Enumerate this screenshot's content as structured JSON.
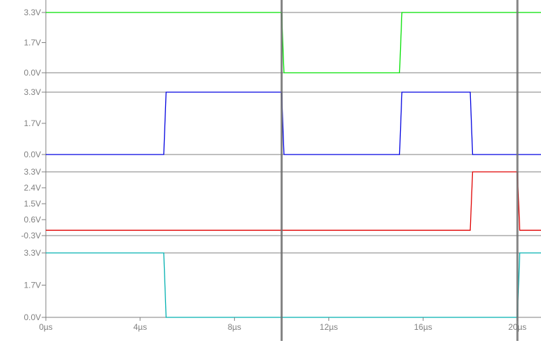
{
  "chart_data": {
    "type": "line",
    "x_unit": "µs",
    "xlim": [
      0,
      21
    ],
    "x_ticks": [
      0,
      4,
      8,
      12,
      16,
      20
    ],
    "x_tick_labels": [
      "0µs",
      "4µs",
      "8µs",
      "12µs",
      "16µs",
      "20µs"
    ],
    "cursors": [
      10,
      20
    ],
    "cursor_color": "#6e6e6e",
    "axis_color": "#7f7f7f",
    "series": [
      {
        "color": "#00e000",
        "ylim": [
          0.0,
          3.3
        ],
        "y_ticks": [
          "3.3V",
          "1.7V",
          "0.0V"
        ],
        "points": [
          [
            0,
            3.3
          ],
          [
            10.0,
            3.3
          ],
          [
            10.1,
            0.0
          ],
          [
            15.0,
            0.0
          ],
          [
            15.1,
            3.3
          ],
          [
            21,
            3.3
          ]
        ]
      },
      {
        "color": "#0000e0",
        "ylim": [
          0.0,
          3.3
        ],
        "y_ticks": [
          "3.3V",
          "1.7V",
          "0.0V"
        ],
        "points": [
          [
            0,
            0.0
          ],
          [
            5.0,
            0.0
          ],
          [
            5.1,
            3.3
          ],
          [
            10.0,
            3.3
          ],
          [
            10.1,
            0.0
          ],
          [
            15.0,
            0.0
          ],
          [
            15.1,
            3.3
          ],
          [
            18.0,
            3.3
          ],
          [
            18.1,
            0.0
          ],
          [
            21,
            0.0
          ]
        ]
      },
      {
        "color": "#e00000",
        "ylim": [
          -0.3,
          3.3
        ],
        "y_ticks": [
          "3.3V",
          "2.4V",
          "1.5V",
          "0.6V",
          "-0.3V"
        ],
        "points": [
          [
            0,
            0.0
          ],
          [
            18.0,
            0.0
          ],
          [
            18.1,
            3.3
          ],
          [
            20.0,
            3.3
          ],
          [
            20.1,
            0.0
          ],
          [
            21,
            0.0
          ]
        ]
      },
      {
        "color": "#00b0b0",
        "ylim": [
          0.0,
          3.3
        ],
        "y_ticks": [
          "3.3V",
          "1.7V",
          "0.0V"
        ],
        "points": [
          [
            0,
            3.3
          ],
          [
            5.0,
            3.3
          ],
          [
            5.1,
            0.0
          ],
          [
            20.0,
            0.0
          ],
          [
            20.1,
            3.3
          ],
          [
            21,
            3.3
          ]
        ]
      }
    ]
  }
}
